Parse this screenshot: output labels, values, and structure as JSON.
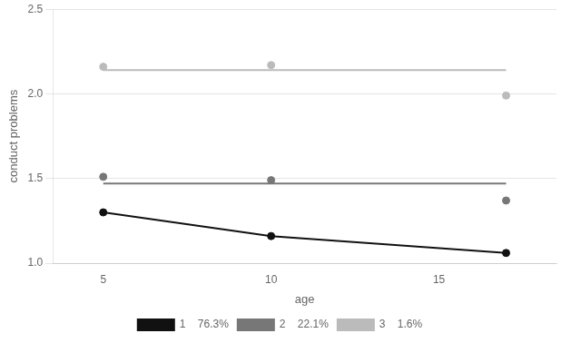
{
  "chart_data": {
    "type": "line",
    "x_label": "age",
    "y_label": "conduct problems",
    "x": [
      5,
      10,
      17
    ],
    "series": [
      {
        "name": "1    76.3%",
        "color": "#111111",
        "values": [
          1.3,
          1.16,
          1.06
        ],
        "observed": [
          1.3,
          1.16,
          1.06
        ],
        "line_style": "solid",
        "marker": "circle"
      },
      {
        "name": "2    22.1%",
        "color": "#777777",
        "values": [
          1.47,
          1.47,
          1.47
        ],
        "observed": [
          1.51,
          1.49,
          1.37
        ],
        "line_style": "solid",
        "marker": "circle"
      },
      {
        "name": "3    1.6%",
        "color": "#bbbbbb",
        "values": [
          2.14,
          2.14,
          2.14
        ],
        "observed": [
          2.16,
          2.17,
          1.99
        ],
        "line_style": "solid",
        "marker": "circle"
      }
    ],
    "xlim": [
      3.5,
      18.5
    ],
    "ylim": [
      1.0,
      2.5
    ],
    "xticks": [
      5,
      10,
      15
    ],
    "yticks": [
      {
        "value": 1.0,
        "label": "1.0"
      },
      {
        "value": 1.5,
        "label": "1.5"
      },
      {
        "value": 2.0,
        "label": "2.0"
      },
      {
        "value": 2.5,
        "label": "2.5"
      }
    ],
    "grid": "y",
    "legend": "bottom"
  }
}
